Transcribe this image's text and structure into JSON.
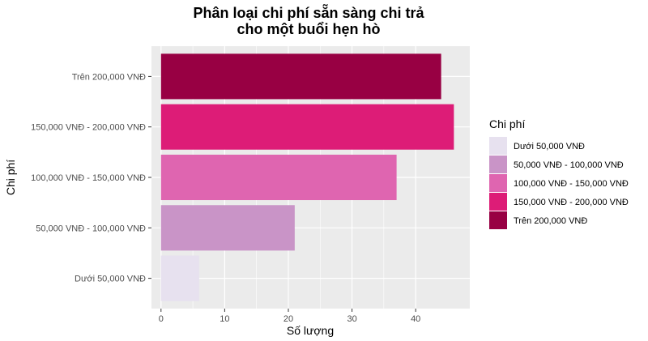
{
  "chart_data": {
    "type": "bar",
    "orientation": "horizontal",
    "title_lines": [
      "Phân loại chi phí sẵn sàng chi trả",
      "cho một buổi hẹn hò"
    ],
    "xlabel": "Số lượng",
    "ylabel": "Chi phí",
    "categories": [
      "Dưới 50,000 VNĐ",
      "50,000 VNĐ - 100,000 VNĐ",
      "100,000 VNĐ - 150,000 VNĐ",
      "150,000 VNĐ - 200,000 VNĐ",
      "Trên 200,000 VNĐ"
    ],
    "values": [
      6,
      21,
      37,
      46,
      44
    ],
    "colors": [
      "#e7e1ef",
      "#c994c7",
      "#df65b0",
      "#dd1c77",
      "#980043"
    ],
    "xlim": [
      -1.5,
      48.5
    ],
    "xticks": [
      0,
      10,
      20,
      30,
      40
    ],
    "grid": true,
    "legend": {
      "title": "Chi phí",
      "position": "right",
      "entries": [
        "Dưới 50,000 VNĐ",
        "50,000 VNĐ - 100,000 VNĐ",
        "100,000 VNĐ - 150,000 VNĐ",
        "150,000 VNĐ - 200,000 VNĐ",
        "Trên 200,000 VNĐ"
      ]
    }
  }
}
